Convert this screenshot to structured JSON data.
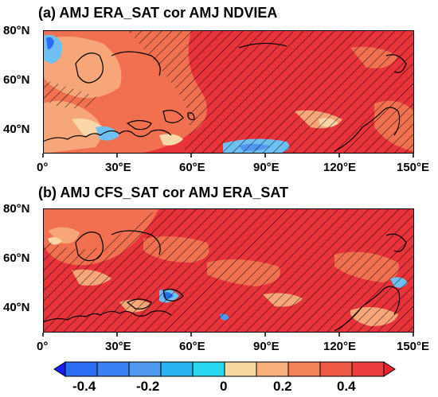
{
  "panels": [
    {
      "title": "(a) AMJ ERA_SAT cor AMJ NDVIEA",
      "lat_labels": [
        "80°N",
        "60°N",
        "40°N"
      ],
      "lon_labels": [
        "0°",
        "30°E",
        "60°E",
        "90°E",
        "120°E",
        "150°E"
      ]
    },
    {
      "title": "(b) AMJ CFS_SAT cor AMJ ERA_SAT",
      "lat_labels": [
        "80°N",
        "60°N",
        "40°N"
      ],
      "lon_labels": [
        "0°",
        "30°E",
        "60°E",
        "90°E",
        "120°E",
        "150°E"
      ]
    }
  ],
  "colorbar": {
    "labels": [
      "-0.4",
      "-0.2",
      "0",
      "0.2",
      "0.4"
    ],
    "colors": [
      "#1a1aff",
      "#2c6cf5",
      "#4f97f0",
      "#6ec0f2",
      "#29d7f2",
      "#f9d9a2",
      "#f7b07b",
      "#f28257",
      "#ee5a45",
      "#ec3d3d",
      "#e8232c"
    ]
  },
  "legend_colors": {
    "strong_positive": "#e8323a",
    "moderate_positive": "#f0704f",
    "weak_positive": "#f6a678",
    "near_zero": "#fbd6a8",
    "negative": "#6ec0f2",
    "strong_negative": "#2c6cf5"
  }
}
